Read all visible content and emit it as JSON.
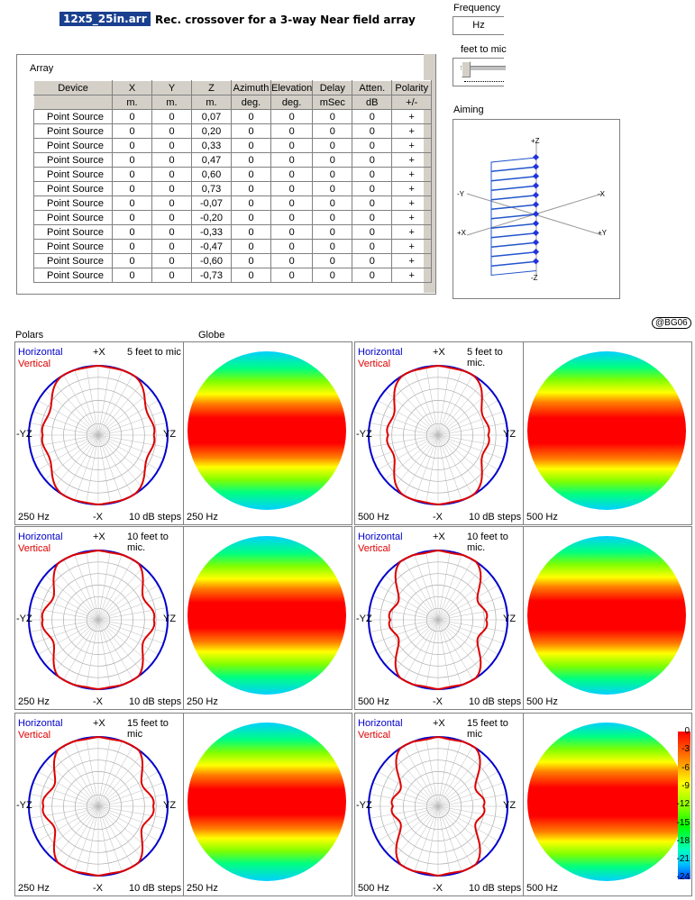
{
  "header": {
    "file_name": "12x5_25in.arr",
    "title": "Rec. crossover for a 3-way Near field array"
  },
  "controls": {
    "frequency_label": "Frequency",
    "frequency_unit": "Hz",
    "feet_label": "feet to mic",
    "slider_value": 0.1,
    "aiming_label": "Aiming"
  },
  "aiming_axes": {
    "plus_z": "+Z",
    "minus_z": "-Z",
    "minus_y": "-Y",
    "minus_x": "-X",
    "plus_x": "+X",
    "plus_y": "+Y"
  },
  "array": {
    "label": "Array",
    "headers": [
      "Device",
      "X",
      "Y",
      "Z",
      "Azimuth",
      "Elevation",
      "Delay",
      "Atten.",
      "Polarity"
    ],
    "units": [
      "",
      "m.",
      "m.",
      "m.",
      "deg.",
      "deg.",
      "mSec",
      "dB",
      "+/-"
    ],
    "rows": [
      [
        "Point Source",
        "0",
        "0",
        "0,07",
        "0",
        "0",
        "0",
        "0",
        "+"
      ],
      [
        "Point Source",
        "0",
        "0",
        "0,20",
        "0",
        "0",
        "0",
        "0",
        "+"
      ],
      [
        "Point Source",
        "0",
        "0",
        "0,33",
        "0",
        "0",
        "0",
        "0",
        "+"
      ],
      [
        "Point Source",
        "0",
        "0",
        "0,47",
        "0",
        "0",
        "0",
        "0",
        "+"
      ],
      [
        "Point Source",
        "0",
        "0",
        "0,60",
        "0",
        "0",
        "0",
        "0",
        "+"
      ],
      [
        "Point Source",
        "0",
        "0",
        "0,73",
        "0",
        "0",
        "0",
        "0",
        "+"
      ],
      [
        "Point Source",
        "0",
        "0",
        "-0,07",
        "0",
        "0",
        "0",
        "0",
        "+"
      ],
      [
        "Point Source",
        "0",
        "0",
        "-0,20",
        "0",
        "0",
        "0",
        "0",
        "+"
      ],
      [
        "Point Source",
        "0",
        "0",
        "-0,33",
        "0",
        "0",
        "0",
        "0",
        "+"
      ],
      [
        "Point Source",
        "0",
        "0",
        "-0,47",
        "0",
        "0",
        "0",
        "0",
        "+"
      ],
      [
        "Point Source",
        "0",
        "0",
        "-0,60",
        "0",
        "0",
        "0",
        "0",
        "+"
      ],
      [
        "Point Source",
        "0",
        "0",
        "-0,73",
        "0",
        "0",
        "0",
        "0",
        "+"
      ]
    ]
  },
  "sections": {
    "polars": "Polars",
    "globe": "Globe",
    "badge": "@BG06"
  },
  "polar_labels": {
    "horizontal": "Horizontal",
    "vertical": "Vertical",
    "top": "+X",
    "bottom": "-X",
    "left": "-YZ",
    "right": "YZ",
    "steps": "10 dB steps"
  },
  "polar_colors": {
    "horizontal": "#0000cc",
    "vertical": "#dd0000"
  },
  "plots": [
    {
      "freq": "250 Hz",
      "distance": "5 feet to mic",
      "lobe": 0.72,
      "ripple": 0.08
    },
    {
      "freq": "500 Hz",
      "distance": "5 feet to mic.",
      "lobe": 0.62,
      "ripple": 0.1
    },
    {
      "freq": "250 Hz",
      "distance": "10 feet to mic.",
      "lobe": 0.68,
      "ripple": 0.12
    },
    {
      "freq": "500 Hz",
      "distance": "10 feet to mic.",
      "lobe": 0.55,
      "ripple": 0.14
    },
    {
      "freq": "250 Hz",
      "distance": "15 feet to mic",
      "lobe": 0.66,
      "ripple": 0.13
    },
    {
      "freq": "500 Hz",
      "distance": "15 feet to mic",
      "lobe": 0.5,
      "ripple": 0.15
    }
  ],
  "colorbar": {
    "ticks": [
      "0",
      "-3",
      "-6",
      "-9",
      "-12",
      "-15",
      "-18",
      "-21",
      "-24"
    ]
  }
}
